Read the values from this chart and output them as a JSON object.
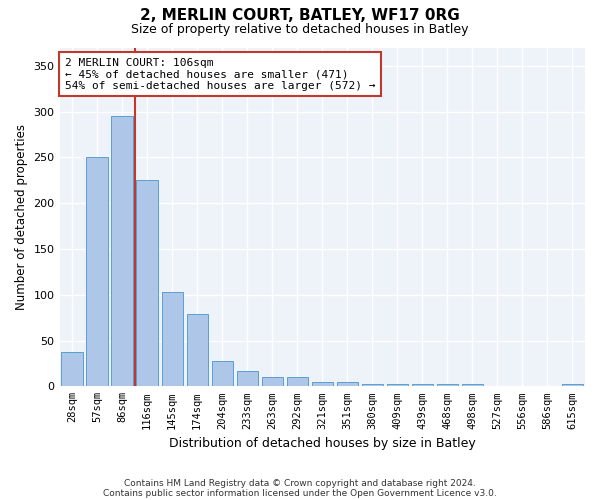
{
  "title1": "2, MERLIN COURT, BATLEY, WF17 0RG",
  "title2": "Size of property relative to detached houses in Batley",
  "xlabel": "Distribution of detached houses by size in Batley",
  "ylabel": "Number of detached properties",
  "categories": [
    "28sqm",
    "57sqm",
    "86sqm",
    "116sqm",
    "145sqm",
    "174sqm",
    "204sqm",
    "233sqm",
    "263sqm",
    "292sqm",
    "321sqm",
    "351sqm",
    "380sqm",
    "409sqm",
    "439sqm",
    "468sqm",
    "498sqm",
    "527sqm",
    "556sqm",
    "586sqm",
    "615sqm"
  ],
  "values": [
    38,
    250,
    295,
    225,
    103,
    79,
    28,
    17,
    10,
    10,
    5,
    5,
    3,
    3,
    3,
    2,
    3,
    0,
    0,
    0,
    3
  ],
  "bar_color": "#aec6e8",
  "bar_edgecolor": "#5a9fd4",
  "vline_x": 2.5,
  "vline_color": "#c0392b",
  "annotation_text": "2 MERLIN COURT: 106sqm\n← 45% of detached houses are smaller (471)\n54% of semi-detached houses are larger (572) →",
  "ylim": [
    0,
    370
  ],
  "yticks": [
    0,
    50,
    100,
    150,
    200,
    250,
    300,
    350
  ],
  "background_color": "#eef2f9",
  "footer1": "Contains HM Land Registry data © Crown copyright and database right 2024.",
  "footer2": "Contains public sector information licensed under the Open Government Licence v3.0."
}
